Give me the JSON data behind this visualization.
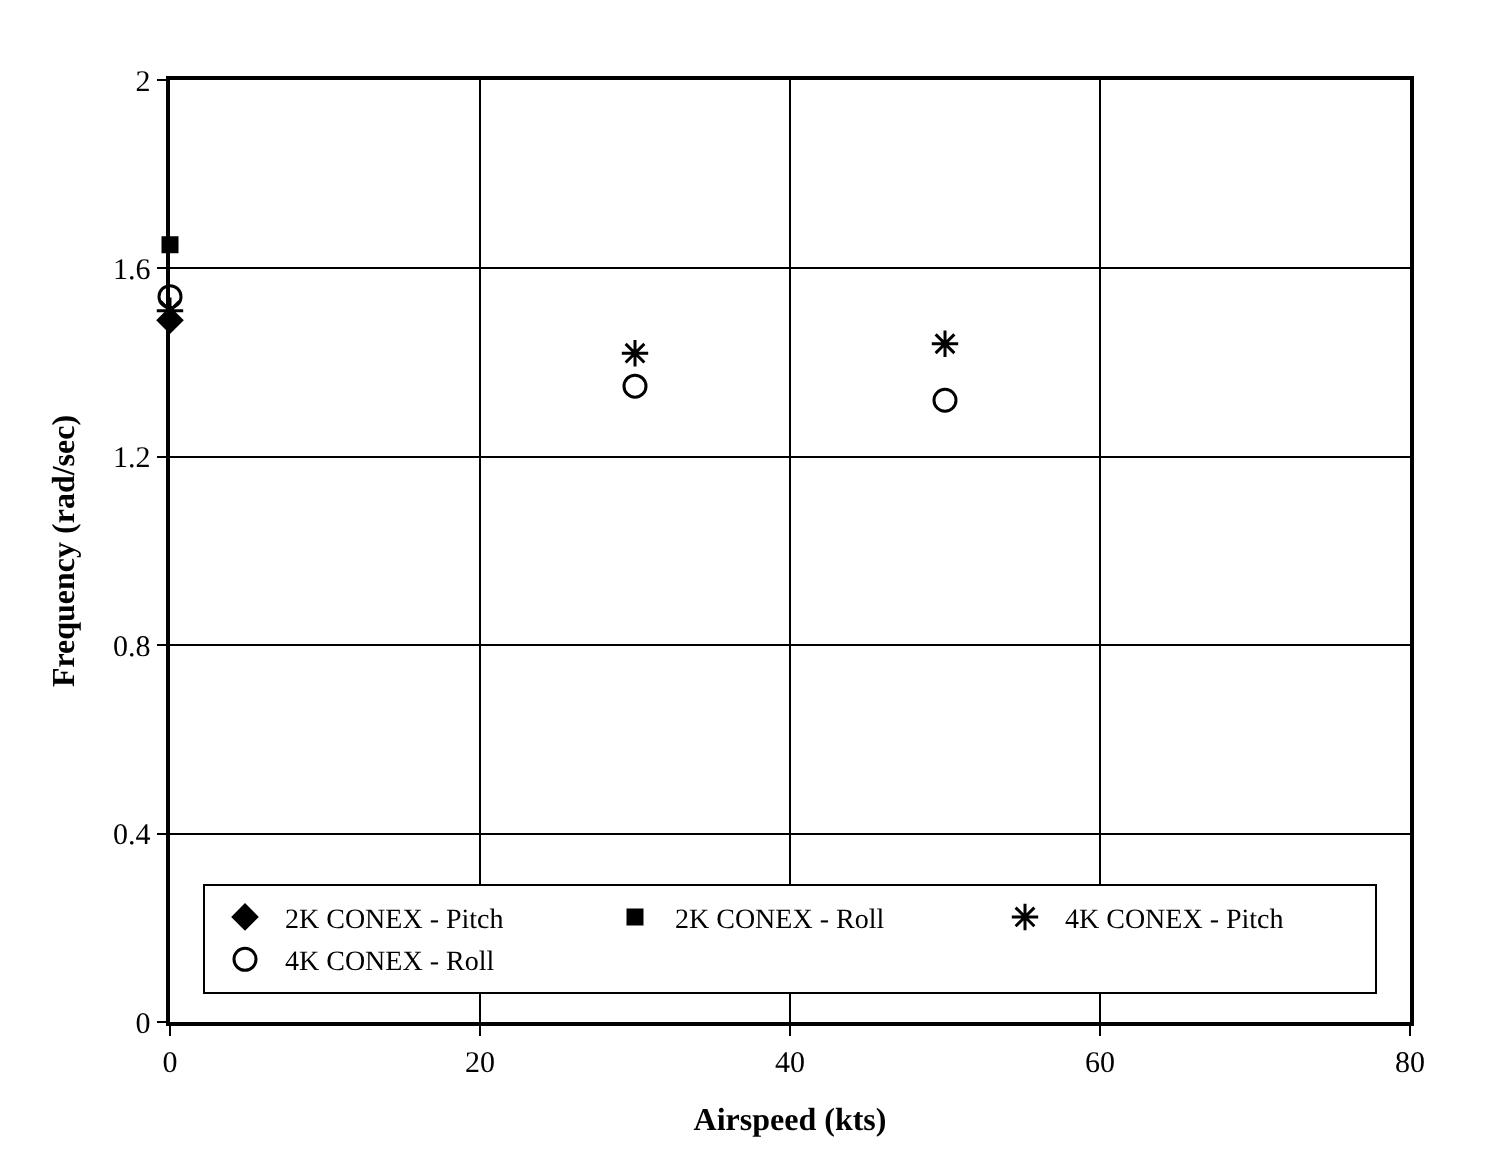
{
  "chart_data": {
    "type": "scatter",
    "xlabel": "Airspeed (kts)",
    "ylabel": "Frequency (rad/sec)",
    "xlim": [
      0,
      80
    ],
    "xticks": [
      0,
      20,
      40,
      60,
      80
    ],
    "ylim": [
      0,
      2
    ],
    "yticks": [
      0,
      0.4,
      0.8,
      1.2,
      1.6,
      2
    ],
    "grid": true,
    "legend": "bottom",
    "series": [
      {
        "name": "2K CONEX - Pitch",
        "color": "#000000",
        "marker": "diamond",
        "x": [
          0
        ],
        "values": [
          1.49
        ]
      },
      {
        "name": "2K CONEX - Roll",
        "color": "#000000",
        "marker": "square",
        "x": [
          0
        ],
        "values": [
          1.65
        ]
      },
      {
        "name": "4K CONEX - Pitch",
        "color": "#000000",
        "marker": "cross",
        "x": [
          0,
          30,
          50
        ],
        "values": [
          1.51,
          1.42,
          1.44
        ]
      },
      {
        "name": "4K CONEX - Roll",
        "color": "#000000",
        "marker": "circle",
        "x": [
          0,
          30,
          50
        ],
        "values": [
          1.54,
          1.35,
          1.32
        ]
      }
    ]
  }
}
